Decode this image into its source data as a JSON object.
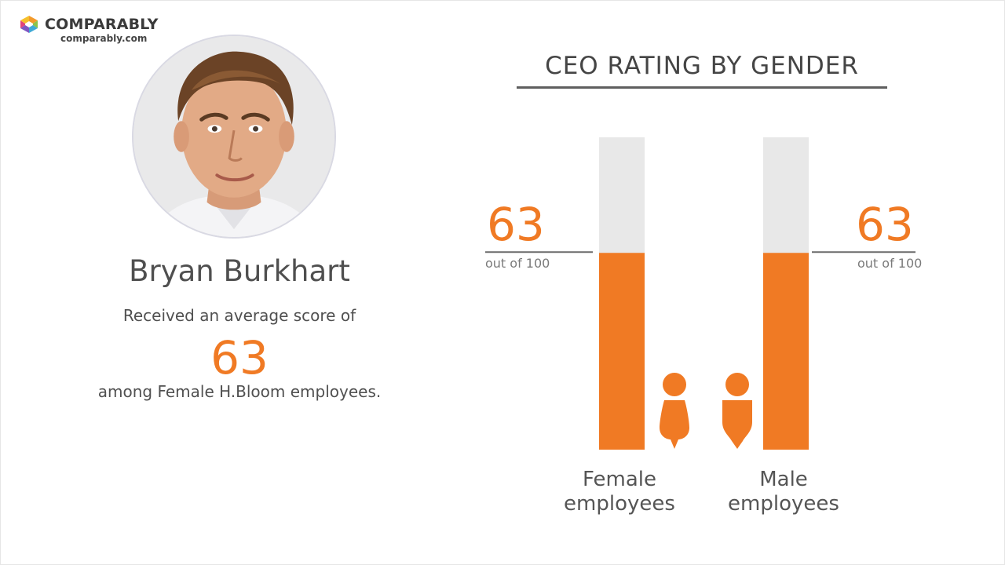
{
  "brand": {
    "name": "COMPARABLY",
    "url": "comparably.com",
    "logo_icon": "comparably-logo-icon"
  },
  "profile": {
    "name": "Bryan Burkhart",
    "received_text": "Received an average score of",
    "score": "63",
    "among_text": "among Female H.Bloom employees."
  },
  "colors": {
    "accent": "#f07a24",
    "track": "#e8e8e8",
    "text": "#555555"
  },
  "chart_data": {
    "type": "bar",
    "title": "CEO RATING BY GENDER",
    "categories": [
      "Female employees",
      "Male employees"
    ],
    "category_lines": [
      [
        "Female",
        "employees"
      ],
      [
        "Male",
        "employees"
      ]
    ],
    "values": [
      63,
      63
    ],
    "ylim": [
      0,
      100
    ],
    "value_labels": [
      "63",
      "63"
    ],
    "value_suffix": "out of 100",
    "icons": [
      "female-person-icon",
      "male-person-icon"
    ],
    "grid": false
  }
}
